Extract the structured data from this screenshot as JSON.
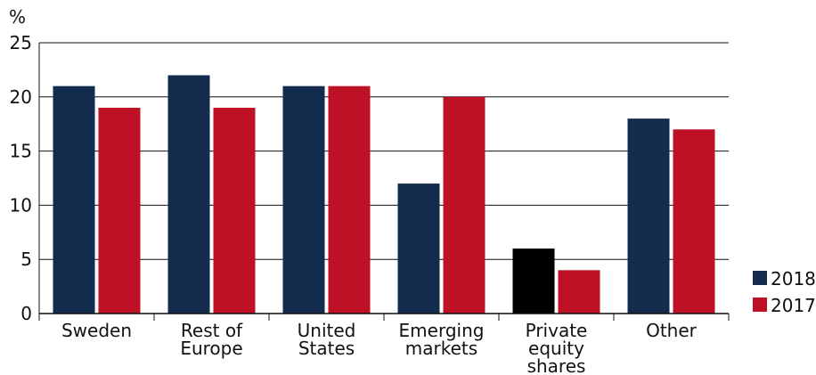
{
  "chart_data": {
    "type": "bar",
    "ylabel": "%",
    "ylim": [
      0,
      25
    ],
    "yticks": [
      0,
      5,
      10,
      15,
      20,
      25
    ],
    "grid": true,
    "legend_position": "bottom-right",
    "categories": [
      [
        "Sweden"
      ],
      [
        "Rest of",
        "Europe"
      ],
      [
        "United",
        "States"
      ],
      [
        "Emerging",
        "markets"
      ],
      [
        "Private",
        "equity",
        "shares"
      ],
      [
        "Other"
      ]
    ],
    "series": [
      {
        "name": "2018",
        "color": "#132b4c",
        "values": [
          21,
          22,
          21,
          12,
          6,
          18
        ]
      },
      {
        "name": "2017",
        "color": "#be1125",
        "values": [
          19,
          19,
          21,
          20,
          4,
          17
        ]
      }
    ],
    "special_colors": [
      {
        "series": 0,
        "category": 4,
        "color": "#000000"
      }
    ]
  }
}
